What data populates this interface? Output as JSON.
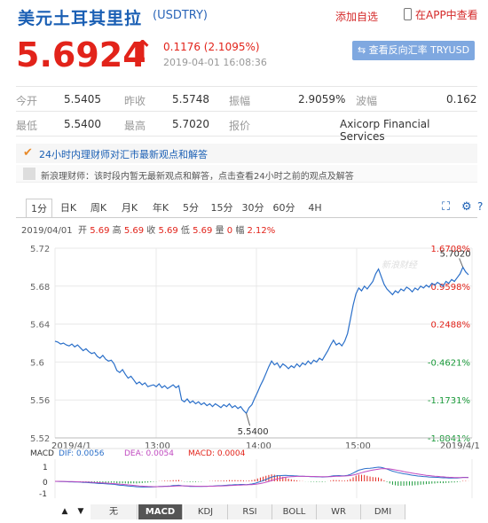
{
  "header": {
    "title": "美元土耳其里拉",
    "code": "(USDTRY)",
    "add_fav": "添加自选",
    "app_view": "在APP中查看"
  },
  "quote": {
    "price": "5.6924",
    "arrow": "↑",
    "change": "0.1176 (2.1095%)",
    "time": "2019-04-01 16:08:36",
    "reverse_btn": "⇆ 查看反向汇率 TRYUSD"
  },
  "stats": {
    "row1": [
      {
        "label": "今开",
        "value": "5.5405"
      },
      {
        "label": "昨收",
        "value": "5.5748"
      },
      {
        "label": "振幅",
        "value": "2.9059%"
      },
      {
        "label": "波幅",
        "value": "0.162"
      }
    ],
    "row2": [
      {
        "label": "最低",
        "value": "5.5400"
      },
      {
        "label": "最高",
        "value": "5.7020"
      },
      {
        "label": "报价",
        "value": "Axicorp Financial Services"
      }
    ]
  },
  "notice": {
    "text": "24小时内理财师对汇市最新观点和解答",
    "advisor": "新浪理财师：该时段内暂无最新观点和解答，点击查看24小时之前的观点及解答"
  },
  "tabs": [
    "1分",
    "日K",
    "周K",
    "月K",
    "年K",
    "5分",
    "15分",
    "30分",
    "60分",
    "4H"
  ],
  "kline": {
    "date": "2019/04/01",
    "open_label": "开",
    "open": "5.69",
    "high_label": "高",
    "high": "5.69",
    "close_label": "收",
    "close": "5.69",
    "low_label": "低",
    "low": "5.69",
    "vol_label": "量",
    "vol": "0",
    "amp_label": "幅",
    "amp": "2.12%"
  },
  "chart_data": {
    "type": "line",
    "y_ticks": [
      "5.72",
      "5.68",
      "5.64",
      "5.6",
      "5.56",
      "5.52"
    ],
    "pct_ticks": [
      "1.6708%",
      "0.9598%",
      "0.2488%",
      "-0.4621%",
      "-1.1731%",
      "-1.8841%"
    ],
    "x_ticks": [
      "2019/4/1",
      "13:00",
      "14:00",
      "15:00",
      "2019/4/1"
    ],
    "ylim": [
      5.52,
      5.72
    ],
    "high_label": "5.7020",
    "low_label": "5.5400",
    "watermark": "新浪财经",
    "colors": {
      "line": "#2a6fc9",
      "grid": "#e8e8e8",
      "up": "#e2231a",
      "down": "#1a9a3a"
    },
    "series": [
      {
        "values": [
          5.622,
          5.621,
          5.619,
          5.62,
          5.618,
          5.617,
          5.619,
          5.616,
          5.618,
          5.615,
          5.612,
          5.614,
          5.611,
          5.609,
          5.61,
          5.606,
          5.604,
          5.607,
          5.603,
          5.601,
          5.602,
          5.598,
          5.591,
          5.589,
          5.592,
          5.587,
          5.583,
          5.585,
          5.581,
          5.577,
          5.579,
          5.576,
          5.578,
          5.574,
          5.575,
          5.576,
          5.574,
          5.577,
          5.573,
          5.575,
          5.572,
          5.574,
          5.576,
          5.573,
          5.575,
          5.56,
          5.558,
          5.561,
          5.557,
          5.559,
          5.556,
          5.558,
          5.555,
          5.557,
          5.554,
          5.556,
          5.553,
          5.556,
          5.554,
          5.552,
          5.555,
          5.553,
          5.556,
          5.552,
          5.554,
          5.551,
          5.553,
          5.549,
          5.546,
          5.552,
          5.555,
          5.562,
          5.568,
          5.575,
          5.581,
          5.588,
          5.595,
          5.601,
          5.597,
          5.599,
          5.594,
          5.598,
          5.596,
          5.593,
          5.596,
          5.594,
          5.598,
          5.595,
          5.599,
          5.597,
          5.601,
          5.598,
          5.602,
          5.6,
          5.604,
          5.602,
          5.607,
          5.612,
          5.618,
          5.623,
          5.618,
          5.62,
          5.617,
          5.622,
          5.63,
          5.645,
          5.66,
          5.672,
          5.678,
          5.675,
          5.68,
          5.677,
          5.681,
          5.685,
          5.693,
          5.698,
          5.69,
          5.682,
          5.677,
          5.674,
          5.671,
          5.675,
          5.673,
          5.677,
          5.675,
          5.679,
          5.677,
          5.674,
          5.678,
          5.676,
          5.68,
          5.678,
          5.681,
          5.679,
          5.683,
          5.681,
          5.684,
          5.682,
          5.68,
          5.685,
          5.683,
          5.687,
          5.685,
          5.689,
          5.693,
          5.7,
          5.695,
          5.692
        ]
      }
    ],
    "macd": {
      "label": "MACD",
      "dif_label": "DIF: 0.0056",
      "dea_label": "DEA: 0.0054",
      "macd_label": "MACD: 0.0004",
      "axis": [
        "1",
        "0",
        "-1"
      ]
    }
  },
  "indicators": [
    "无",
    "MACD",
    "KDJ",
    "RSI",
    "BOLL",
    "WR",
    "DMI"
  ],
  "nav": [
    "▲",
    "▼"
  ],
  "icons": [
    "fullscreen-icon",
    "settings-icon",
    "help-icon"
  ]
}
